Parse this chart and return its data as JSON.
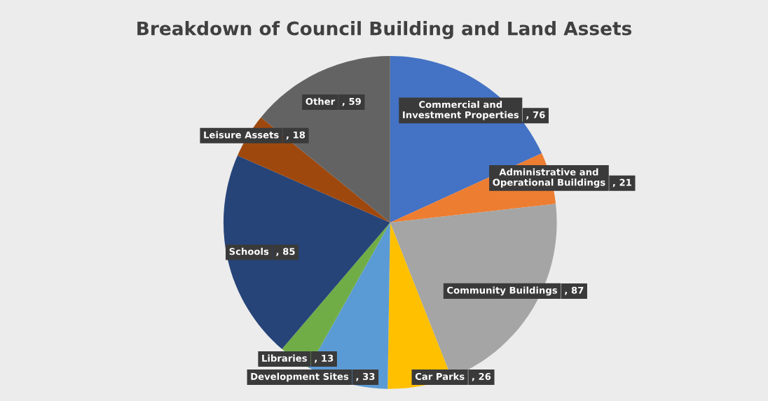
{
  "chart_data": {
    "type": "pie",
    "title": "Breakdown of Council Building and Land Assets",
    "categories": [
      "Commercial and Investment Properties",
      "Administrative and Operational Buildings",
      "Community Buildings",
      "Car Parks",
      "Development Sites",
      "Libraries",
      "Schools",
      "Leisure Assets",
      "Other"
    ],
    "values": [
      76,
      21,
      87,
      26,
      33,
      13,
      85,
      18,
      59
    ],
    "colors": [
      "#4472c4",
      "#ed7d31",
      "#a5a5a5",
      "#ffc000",
      "#5b9bd5",
      "#70ad47",
      "#264478",
      "#9e480e",
      "#636363"
    ],
    "value_labels": [
      ", 76",
      ", 21",
      ", 87",
      ", 26",
      ", 33",
      ", 13",
      ", 85",
      ", 18",
      ", 59"
    ],
    "legend": false
  }
}
